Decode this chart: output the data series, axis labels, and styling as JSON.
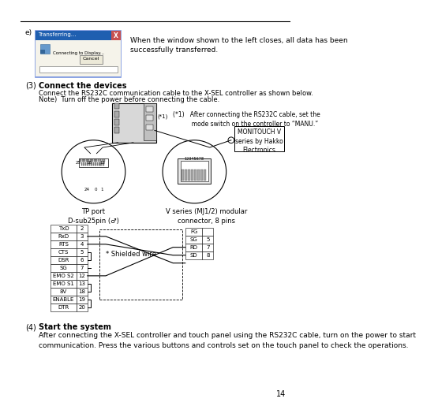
{
  "bg_color": "#ffffff",
  "page_number": "14",
  "section_e_label": "e)",
  "section_e_text": "When the window shown to the left closes, all data has been\nsuccessfully transferred.",
  "section3_label": "(3)",
  "section3_title": "Connect the devices",
  "section3_text1": "Connect the RS232C communication cable to the X-SEL controller as shown below.",
  "section3_text2": "Note)  Turn off the power before connecting the cable.",
  "note1_text": "(*1)   After connecting the RS232C cable, set the\n          mode switch on the controller to “MANU.”",
  "monitouch_label": "MONITOUCH V\nseries by Hakko\nElectronics",
  "tp_port_label": "TP port\nD-sub25pin (♂)",
  "v_series_label": "V series (MJ1/2) modular\nconnector, 8 pins",
  "shielded_label": "* Shielded wire",
  "section4_label": "(4)",
  "section4_title": "Start the system",
  "section4_text": "After connecting the X-SEL controller and touch panel using the RS232C cable, turn on the power to start\ncommunication. Press the various buttons and controls set on the touch panel to check the operations.",
  "left_table_rows": [
    [
      "TxD",
      "2"
    ],
    [
      "RxD",
      "3"
    ],
    [
      "RTS",
      "4"
    ],
    [
      "CTS",
      "5"
    ],
    [
      "DSR",
      "6"
    ],
    [
      "SG",
      "7"
    ],
    [
      "EMO S2",
      "12"
    ],
    [
      "EMO S1",
      "13"
    ],
    [
      "8V",
      "18"
    ],
    [
      "ENABLE",
      "19"
    ],
    [
      "DTR",
      "20"
    ]
  ],
  "right_table_rows": [
    [
      "FG",
      ""
    ],
    [
      "SG",
      "5"
    ],
    [
      "RD",
      "7"
    ],
    [
      "SD",
      "8"
    ]
  ]
}
